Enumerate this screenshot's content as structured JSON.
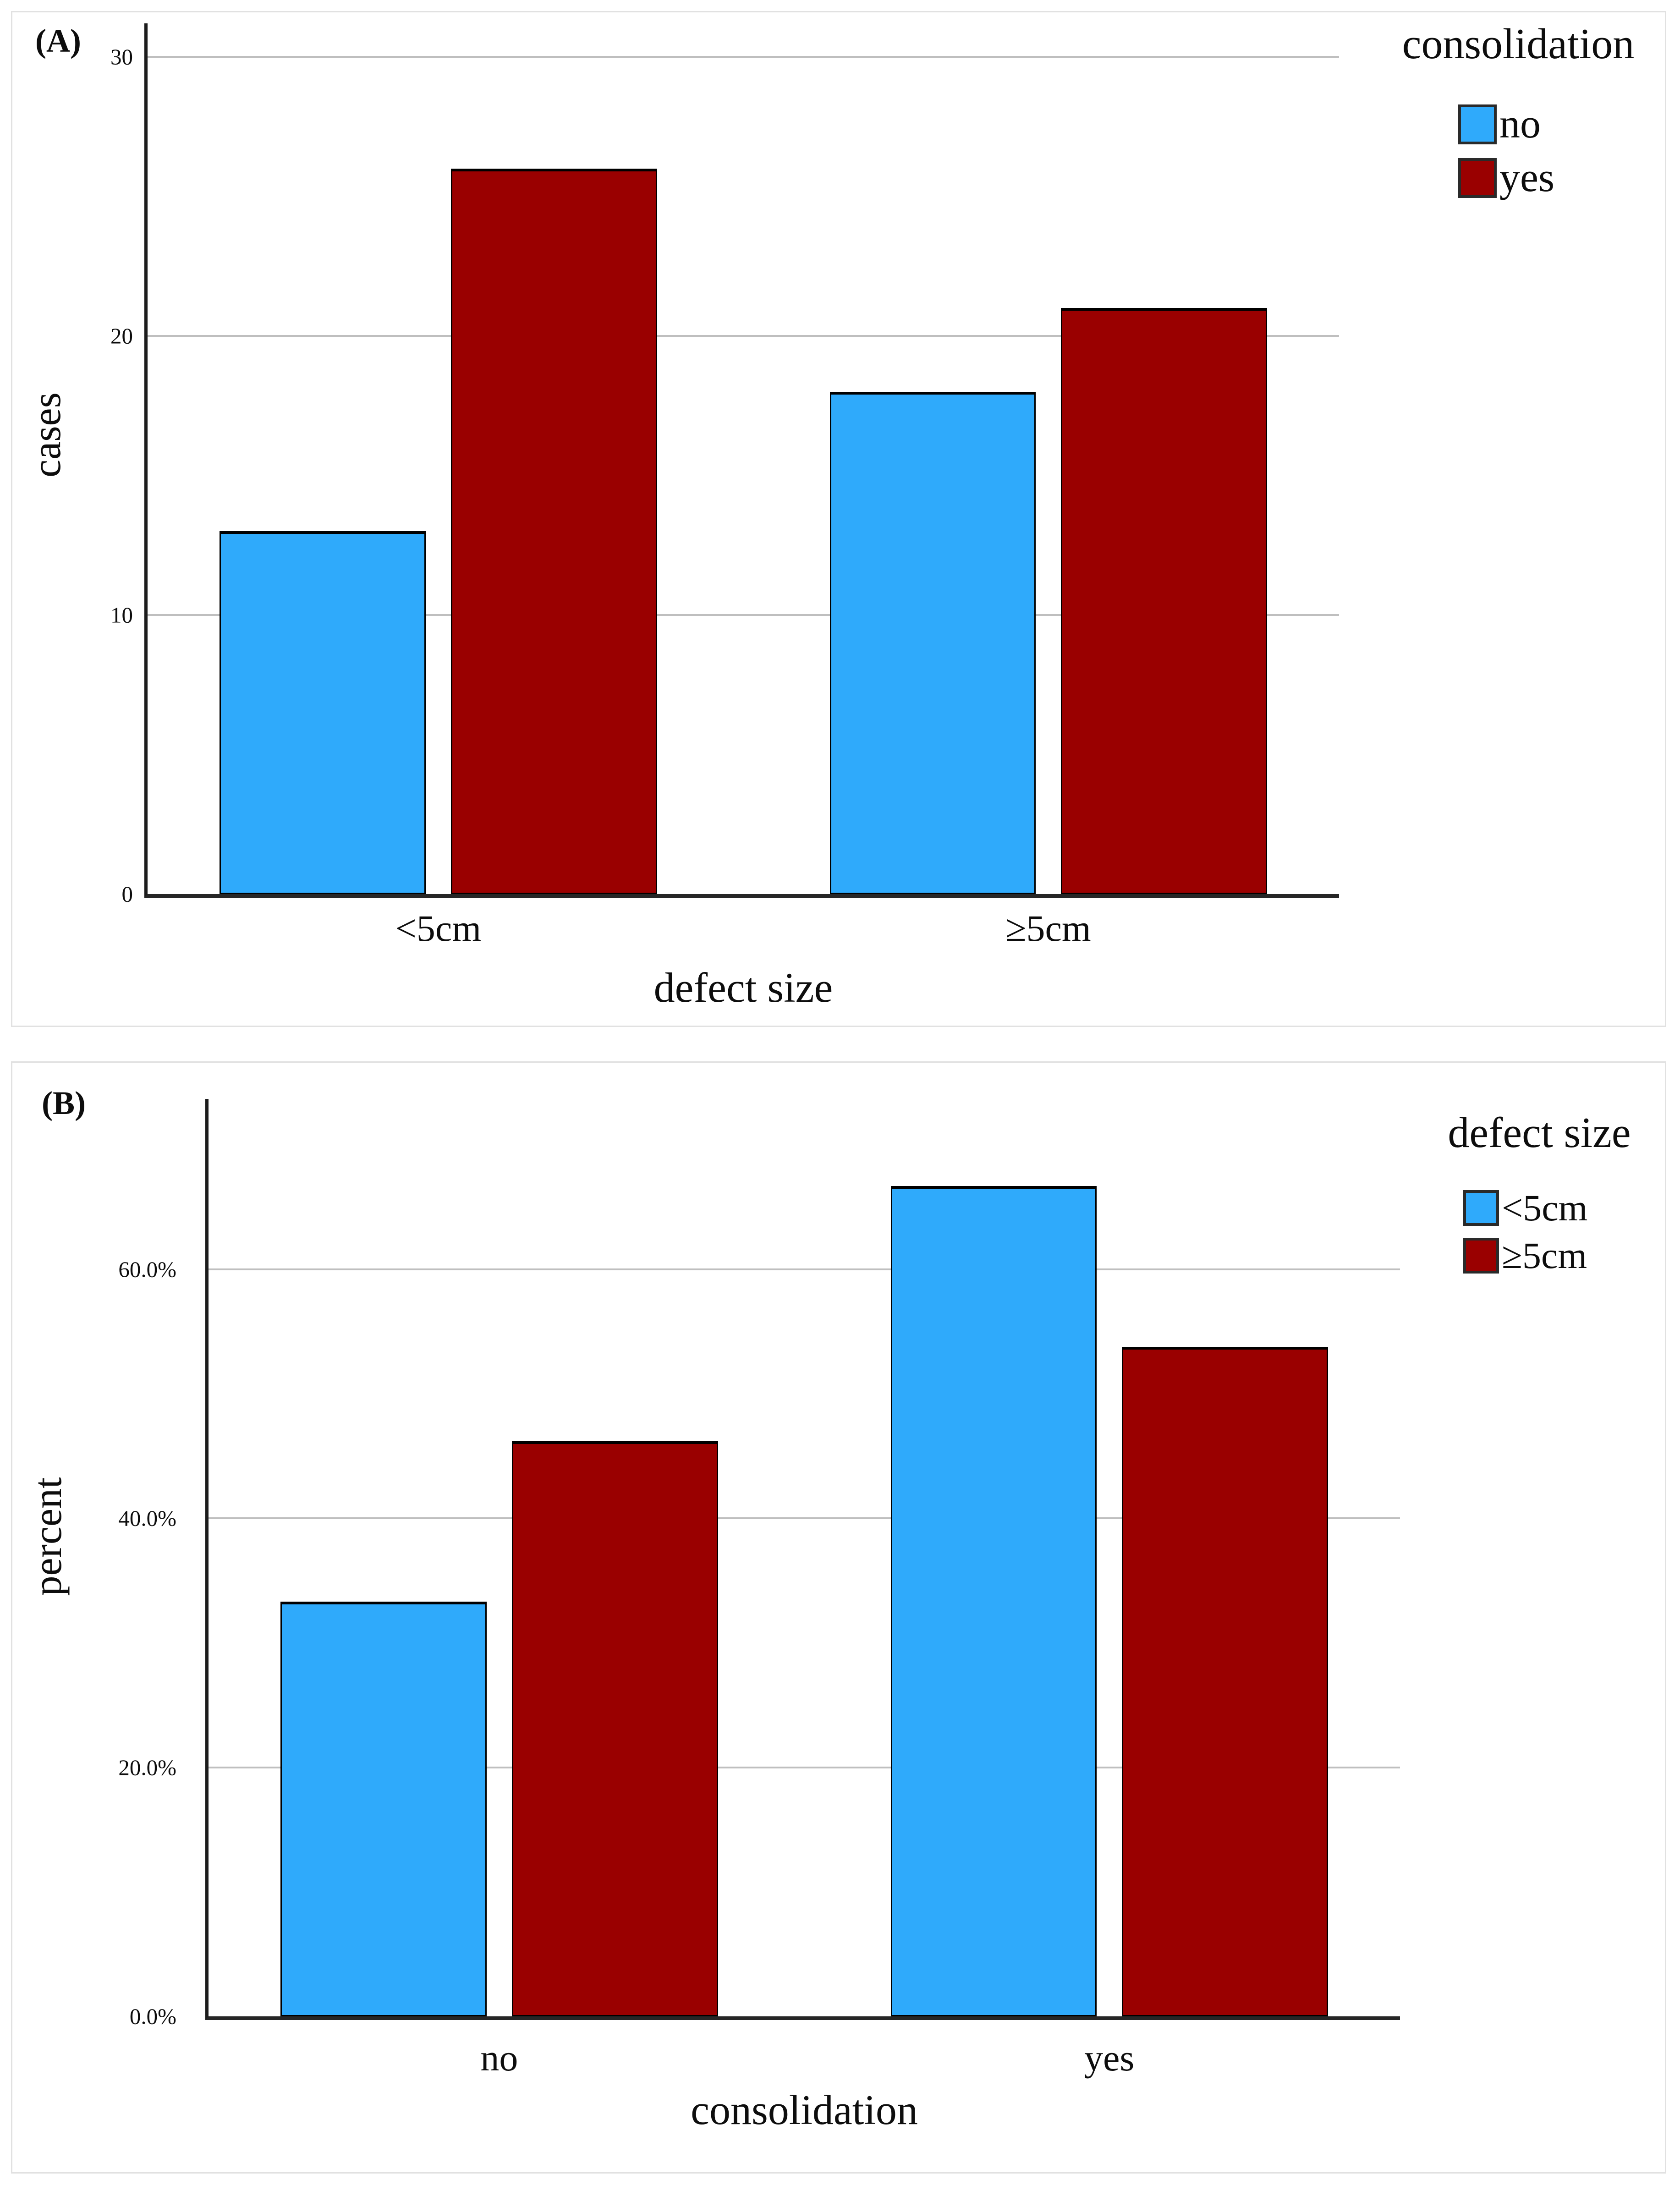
{
  "figure": {
    "background": "#ffffff",
    "panel_border_color": "#e1e1e1",
    "gridline_color": "#bfbfbf",
    "axis_color": "#1c1c1c",
    "bar_border_color": "#000000",
    "series_colors": {
      "blue": "#2FAAFB",
      "dark_red": "#9A0000"
    }
  },
  "chart_data": [
    {
      "type": "bar",
      "panel_label": "(A)",
      "ylabel": "cases",
      "xlabel": "defect size",
      "legend_title": "consolidation",
      "legend_position": "top-right",
      "grid": true,
      "categories": [
        "<5cm",
        "≥5cm"
      ],
      "series": [
        {
          "name": "no",
          "color": "#2FAAFB",
          "values": [
            13,
            18
          ]
        },
        {
          "name": "yes",
          "color": "#9A0000",
          "values": [
            26,
            21
          ]
        }
      ],
      "yticks": [
        {
          "label": "0",
          "value": 0
        },
        {
          "label": "10",
          "value": 10
        },
        {
          "label": "20",
          "value": 20
        },
        {
          "label": "30",
          "value": 30
        }
      ],
      "ylim": [
        0,
        31.2
      ]
    },
    {
      "type": "bar",
      "panel_label": "(B)",
      "ylabel": "percent",
      "xlabel": "consolidation",
      "legend_title": "defect size",
      "legend_position": "top-right",
      "grid": true,
      "categories": [
        "no",
        "yes"
      ],
      "series": [
        {
          "name": "<5cm",
          "color": "#2FAAFB",
          "values": [
            33.3,
            66.7
          ]
        },
        {
          "name": "≥5cm",
          "color": "#9A0000",
          "values": [
            46.2,
            53.8
          ]
        }
      ],
      "yticks": [
        {
          "label": "0.0%",
          "value": 0
        },
        {
          "label": "20.0%",
          "value": 20
        },
        {
          "label": "40.0%",
          "value": 40
        },
        {
          "label": "60.0%",
          "value": 60
        }
      ],
      "ylim": [
        0,
        73.7
      ]
    }
  ]
}
